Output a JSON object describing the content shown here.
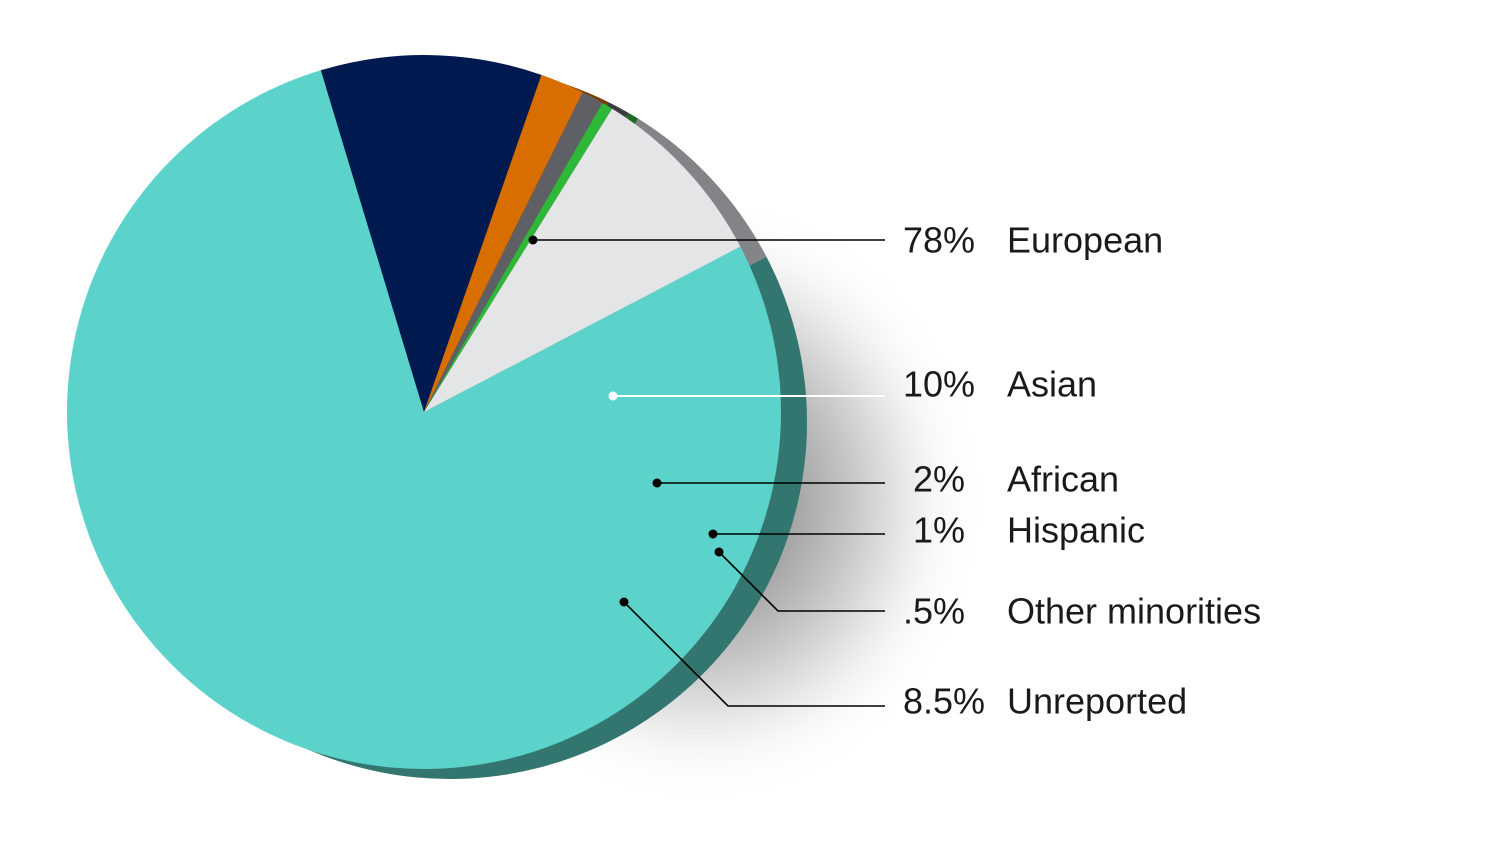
{
  "chart_data": {
    "type": "pie",
    "title": "",
    "slices": [
      {
        "label": "European",
        "value": 78,
        "value_label": "78%",
        "color": "#5bd3ca",
        "side_color": "#33766f"
      },
      {
        "label": "Asian",
        "value": 10,
        "value_label": "10%",
        "color": "#001a50",
        "side_color": "#000e2c"
      },
      {
        "label": "African",
        "value": 2,
        "value_label": "2%",
        "color": "#d96e00",
        "side_color": "#7a3e05"
      },
      {
        "label": "Hispanic",
        "value": 1,
        "value_label": "1%",
        "color": "#5e6065",
        "side_color": "#3a3c40"
      },
      {
        "label": "Other minorities",
        "value": 0.5,
        "value_label": ".5%",
        "color": "#2db83a",
        "side_color": "#1c6a25"
      },
      {
        "label": "Unreported",
        "value": 8.5,
        "value_label": "8.5%",
        "color": "#e4e5e7",
        "side_color": "#838487"
      }
    ],
    "legend": "right-of-pie with leader lines"
  }
}
